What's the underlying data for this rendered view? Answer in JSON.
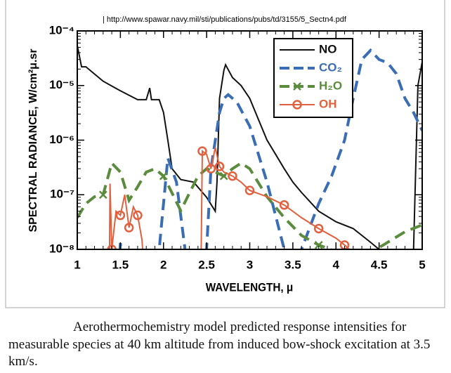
{
  "chart_data": {
    "type": "line",
    "source": "| http://www.spawar.navy.mil/sti/publications/pubs/td/3155/5_Sectn4.pdf",
    "x_label": "WAVELENGTH, μ",
    "y_label": "SPECTRAL RADIANCE, W/cm²μ.sr",
    "caption": "Aerothermochemistry model predicted response intensities for measurable species at 40 km altitude from induced bow-shock excitation at 3.5 km/s.",
    "xlim": [
      1,
      5
    ],
    "xticks": [
      1,
      1.5,
      2,
      2.5,
      3,
      3.5,
      4,
      4.5,
      5
    ],
    "ylim": [
      1e-08,
      0.0001
    ],
    "yticks": [
      {
        "value": 1e-08,
        "label": "10⁻⁸"
      },
      {
        "value": 1e-07,
        "label": "10⁻⁷"
      },
      {
        "value": 1e-06,
        "label": "10⁻⁶"
      },
      {
        "value": 1e-05,
        "label": "10⁻⁵"
      },
      {
        "value": 0.0001,
        "label": "10⁻⁴"
      }
    ],
    "y_scale": "log",
    "legend": "upper right",
    "series": [
      {
        "name": "NO",
        "color": "#111111",
        "dash": "solid",
        "marker": "none",
        "x": [
          1,
          1.05,
          1.1,
          1.3,
          1.5,
          1.7,
          1.8,
          1.84,
          1.86,
          1.95,
          2.0,
          2.05,
          2.1,
          2.2,
          2.35,
          2.5,
          2.6,
          2.62,
          2.65,
          2.7,
          2.72,
          2.8,
          2.9,
          3.0,
          3.1,
          3.2,
          3.3,
          3.4,
          3.5,
          3.6,
          3.8,
          4.0,
          4.2,
          4.4,
          4.5,
          4.9,
          4.95,
          5
        ],
        "values": [
          5.4e-05,
          2.2e-05,
          2.2e-05,
          1.2e-05,
          8e-06,
          5.5e-06,
          5.5e-06,
          9e-06,
          5.5e-06,
          5.5e-06,
          3.2e-06,
          1e-06,
          3e-07,
          1.9e-07,
          1.7e-07,
          9e-08,
          5e-08,
          1.7e-07,
          5.8e-06,
          1.9e-05,
          2.4e-05,
          1.4e-05,
          1e-05,
          5.8e-06,
          2.4e-06,
          1e-06,
          5.5e-07,
          3e-07,
          1.7e-07,
          1.1e-07,
          5e-08,
          3.2e-08,
          2.4e-08,
          1.35e-08,
          1e-08,
          1e-08,
          1e-05,
          2.7e-05
        ]
      },
      {
        "name": "CO₂",
        "color": "#3a6db4",
        "dash": "dashed",
        "marker": "none",
        "x": [
          1.45,
          1.5,
          1.56,
          1.9,
          1.95,
          2.05,
          2.15,
          2.25,
          2.3,
          2.45,
          2.5,
          2.55,
          2.65,
          2.7,
          2.75,
          2.85,
          3.0,
          3.2,
          3.4,
          3.45,
          3.55,
          3.6,
          3.8,
          3.95,
          4.1,
          4.2,
          4.3,
          4.4,
          4.5,
          4.6,
          4.7,
          4.8,
          4.9,
          5
        ],
        "values": [
          1e-09,
          1.3e-08,
          1e-09,
          1e-09,
          1e-08,
          4.7e-07,
          1.7e-07,
          1e-08,
          1e-09,
          1e-09,
          1e-08,
          3e-07,
          3.2e-06,
          5.8e-06,
          6.8e-06,
          5e-06,
          1.8e-06,
          1.7e-07,
          1e-08,
          1e-09,
          1e-09,
          1e-08,
          6.9e-08,
          2.2e-07,
          1e-06,
          5.8e-06,
          3e-05,
          4.4e-05,
          3e-05,
          2.6e-05,
          1.64e-05,
          5.8e-06,
          3.2e-06,
          1.5e-06
        ]
      },
      {
        "name": "H₂O",
        "color": "#5b8b3d",
        "dash": "dashed",
        "marker": "x",
        "x": [
          1.0,
          1.1,
          1.2,
          1.3,
          1.4,
          1.5,
          1.6,
          1.7,
          1.8,
          1.9,
          2.0,
          2.1,
          2.2,
          2.3,
          2.4,
          2.5,
          2.6,
          2.7,
          2.8,
          2.9,
          3.0,
          3.2,
          3.4,
          3.6,
          3.8,
          4.0,
          4.2,
          4.4,
          4.6,
          4.8,
          5.0
        ],
        "values": [
          3.8e-08,
          6.9e-08,
          9.2e-08,
          1e-07,
          3.8e-07,
          2.6e-07,
          7.9e-08,
          1.4e-07,
          2.6e-07,
          3e-07,
          2.2e-07,
          1.07e-07,
          5.1e-08,
          1.07e-07,
          2.2e-07,
          3e-07,
          2.6e-07,
          2.2e-07,
          3e-07,
          3.8e-07,
          3e-07,
          9.2e-08,
          3.8e-08,
          1.8e-08,
          1.2e-08,
          9.1e-09,
          7.4e-09,
          8.6e-09,
          1.35e-08,
          2.1e-08,
          2.8e-08
        ]
      },
      {
        "name": "OH",
        "color": "#e2603e",
        "dash": "solid",
        "marker": "circle",
        "x": [
          1.37,
          1.38,
          1.4,
          1.45,
          1.5,
          1.55,
          1.6,
          1.65,
          1.7,
          1.75,
          1.8,
          2.43,
          2.45,
          2.5,
          2.55,
          2.6,
          2.65,
          2.7,
          2.8,
          2.9,
          3.0,
          3.2,
          3.4,
          3.6,
          3.8,
          4.0,
          4.1,
          4.2
        ],
        "values": [
          1e-09,
          1.6e-07,
          1e-08,
          5e-08,
          4.2e-08,
          1e-07,
          2.5e-08,
          6e-08,
          4.2e-08,
          1.5e-08,
          1e-09,
          1e-09,
          6.3e-07,
          5.5e-07,
          3e-07,
          7.3e-07,
          3.3e-07,
          2.6e-07,
          2.2e-07,
          1.7e-07,
          1.2e-07,
          9.2e-08,
          6.5e-08,
          3.8e-08,
          2.4e-08,
          1.6e-08,
          1.2e-08,
          8.6e-09
        ]
      }
    ]
  }
}
